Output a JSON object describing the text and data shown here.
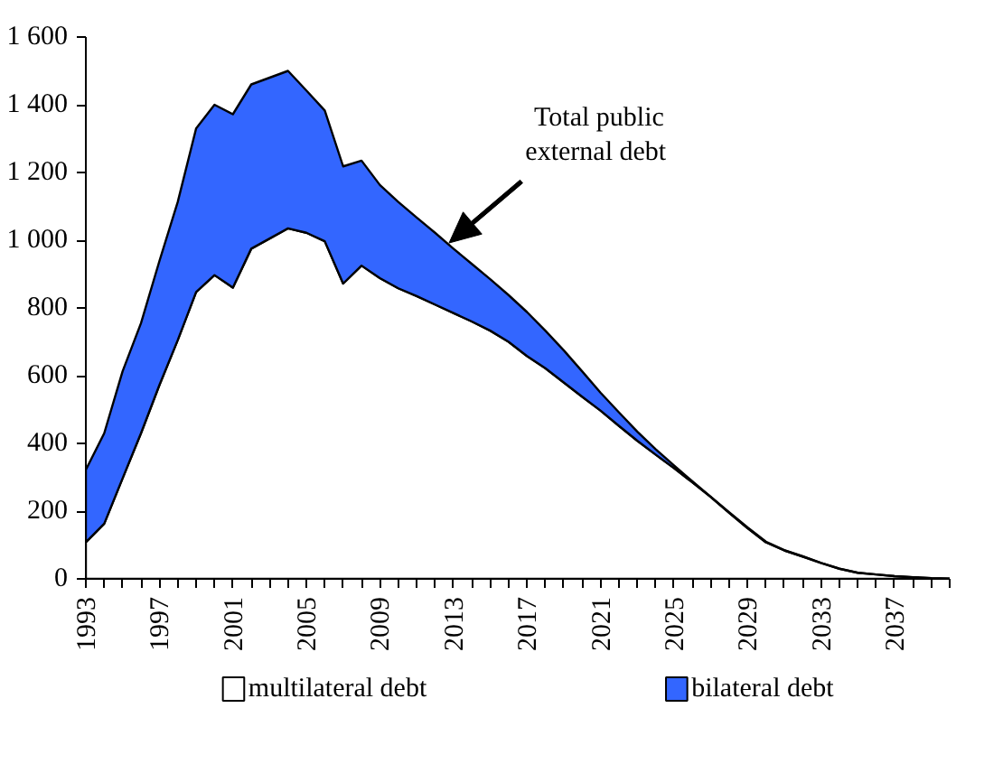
{
  "chart_data": {
    "type": "area",
    "stacked": true,
    "x": [
      1993,
      1994,
      1995,
      1996,
      1997,
      1998,
      1999,
      2000,
      2001,
      2002,
      2003,
      2004,
      2005,
      2006,
      2007,
      2008,
      2009,
      2010,
      2011,
      2012,
      2013,
      2014,
      2015,
      2016,
      2017,
      2018,
      2019,
      2020,
      2021,
      2022,
      2023,
      2024,
      2025,
      2026,
      2027,
      2028,
      2029,
      2030,
      2031,
      2032,
      2033,
      2034,
      2035,
      2036,
      2037,
      2038,
      2039,
      2040
    ],
    "series": [
      {
        "name": "multilateral debt",
        "color": "#ffffff",
        "values": [
          108,
          163,
          297,
          430,
          572,
          705,
          847,
          897,
          860,
          975,
          1005,
          1035,
          1022,
          997,
          872,
          925,
          888,
          858,
          835,
          810,
          785,
          760,
          733,
          700,
          658,
          622,
          580,
          538,
          497,
          452,
          408,
          367,
          327,
          285,
          242,
          195,
          150,
          108,
          84,
          66,
          47,
          30,
          18,
          13,
          8,
          5,
          2,
          1
        ]
      },
      {
        "name": "bilateral debt",
        "color": "#3366ff",
        "values": [
          214,
          267,
          316,
          325,
          366,
          408,
          483,
          503,
          512,
          485,
          475,
          465,
          420,
          386,
          346,
          310,
          275,
          255,
          232,
          212,
          190,
          170,
          152,
          138,
          130,
          111,
          95,
          75,
          53,
          40,
          27,
          16,
          8,
          3,
          0,
          2,
          2,
          2,
          1,
          1,
          0,
          0,
          0,
          0,
          0,
          0,
          0,
          0
        ]
      }
    ],
    "xlim": [
      1993,
      2040
    ],
    "xticks": [
      1993,
      1997,
      2001,
      2005,
      2009,
      2013,
      2017,
      2021,
      2025,
      2029,
      2033,
      2037
    ],
    "ylim": [
      0,
      1600
    ],
    "yticks": [
      0,
      200,
      400,
      600,
      800,
      {
        "value": 1000,
        "label": "1 000"
      },
      {
        "value": 1200,
        "label": "1 200"
      },
      {
        "value": 1400,
        "label": "1 400"
      },
      {
        "value": 1600,
        "label": "1 600"
      }
    ],
    "grid": false,
    "legend": "bottom",
    "annotations": [
      "Total public\nexternal  debt"
    ]
  }
}
